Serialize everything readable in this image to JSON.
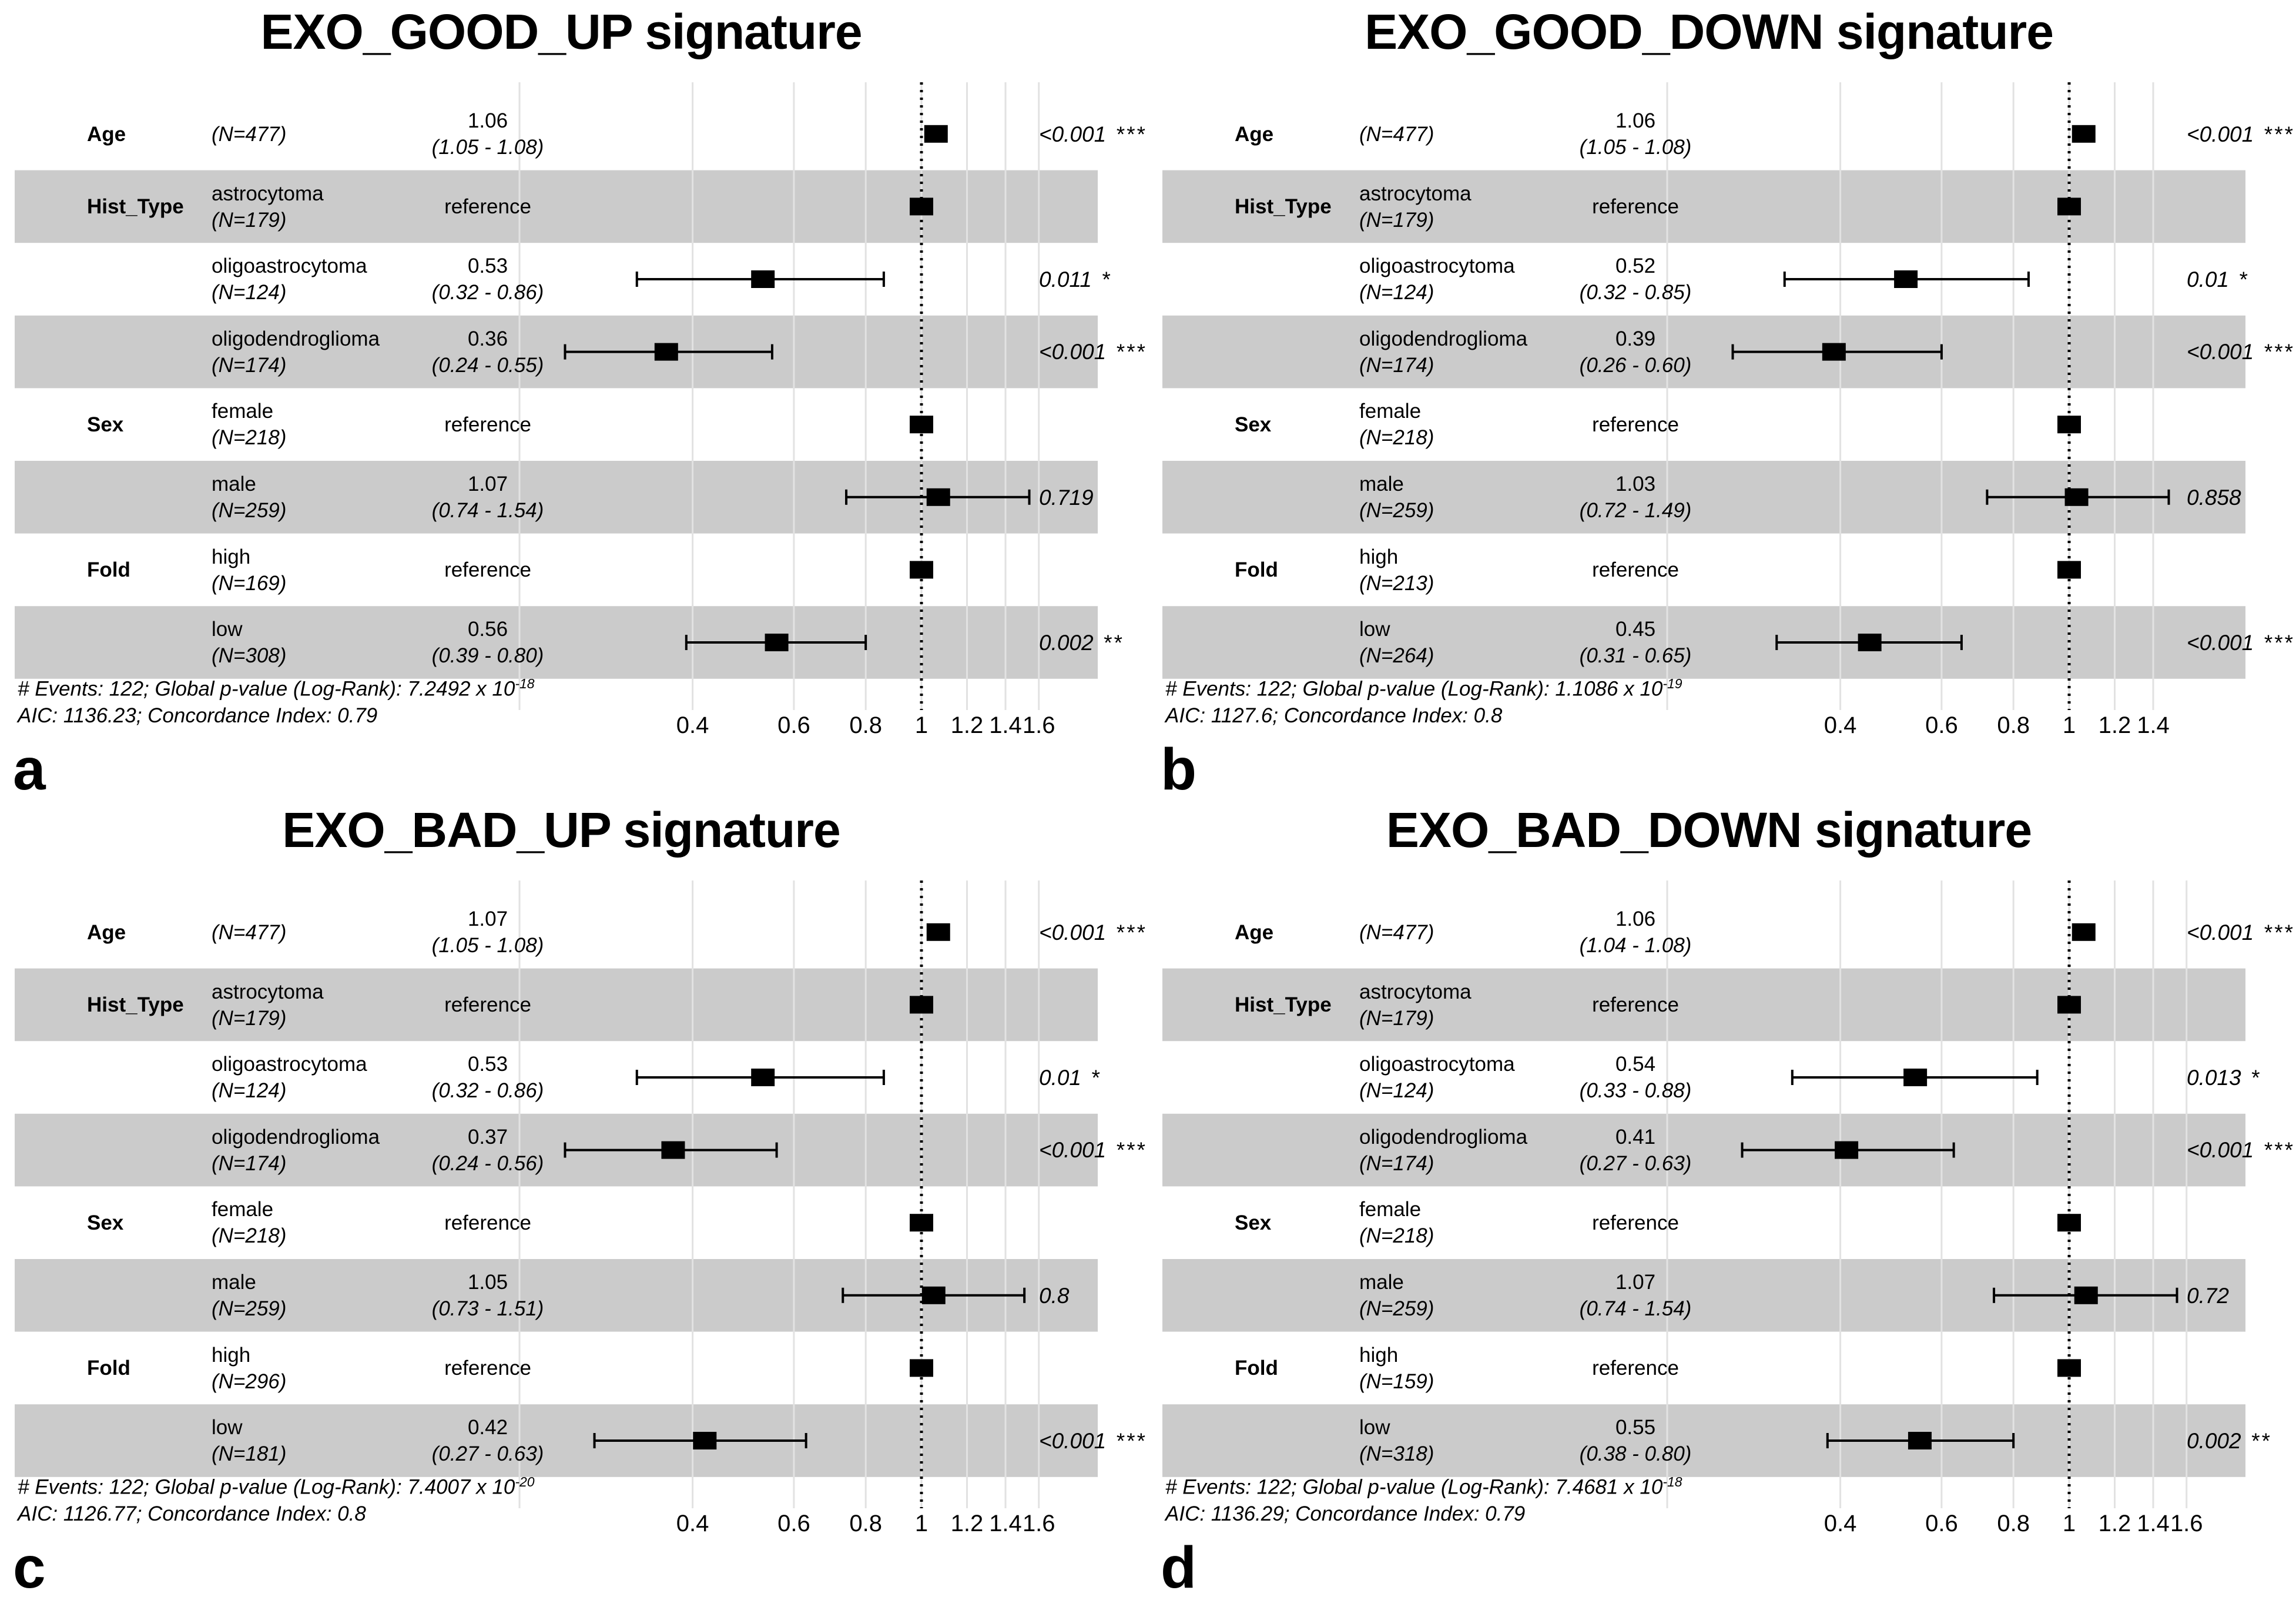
{
  "figure": {
    "background": "#ffffff",
    "band_color": "#cbcbcb",
    "grid_color": "#e2e2e2",
    "marker_color": "#000000"
  },
  "chart_data": [
    {
      "panel_letter": "a",
      "type": "forest",
      "title": "EXO_GOOD_UP signature",
      "xscale": "log",
      "ref_line": 1,
      "x_ticks": [
        "0.4",
        "0.6",
        "0.8",
        "1",
        "1.2",
        "1.4",
        "1.6"
      ],
      "x_grid": [
        0.2,
        0.4,
        0.6,
        0.8,
        1,
        1.2,
        1.4,
        1.6
      ],
      "rows": [
        {
          "variable": "Age",
          "level": "",
          "n": "(N=477)",
          "estimate": "1.06",
          "ci_text": "(1.05 - 1.08)",
          "hr": 1.06,
          "ci_low": 1.05,
          "ci_high": 1.08,
          "p": "<0.001",
          "stars": "***",
          "shaded": false,
          "reference": false
        },
        {
          "variable": "Hist_Type",
          "level": "astrocytoma",
          "n": "(N=179)",
          "estimate": "reference",
          "hr": 1,
          "shaded": true,
          "reference": true
        },
        {
          "variable": "",
          "level": "oligoastrocytoma",
          "n": "(N=124)",
          "estimate": "0.53",
          "ci_text": "(0.32 - 0.86)",
          "hr": 0.53,
          "ci_low": 0.32,
          "ci_high": 0.86,
          "p": "0.011",
          "stars": "*",
          "shaded": false,
          "reference": false
        },
        {
          "variable": "",
          "level": "oligodendroglioma",
          "n": "(N=174)",
          "estimate": "0.36",
          "ci_text": "(0.24 - 0.55)",
          "hr": 0.36,
          "ci_low": 0.24,
          "ci_high": 0.55,
          "p": "<0.001",
          "stars": "***",
          "shaded": true,
          "reference": false
        },
        {
          "variable": "Sex",
          "level": "female",
          "n": "(N=218)",
          "estimate": "reference",
          "hr": 1,
          "shaded": false,
          "reference": true
        },
        {
          "variable": "",
          "level": "male",
          "n": "(N=259)",
          "estimate": "1.07",
          "ci_text": "(0.74 - 1.54)",
          "hr": 1.07,
          "ci_low": 0.74,
          "ci_high": 1.54,
          "p": "0.719",
          "stars": "",
          "shaded": true,
          "reference": false
        },
        {
          "variable": "Fold",
          "level": "high",
          "n": "(N=169)",
          "estimate": "reference",
          "hr": 1,
          "shaded": false,
          "reference": true
        },
        {
          "variable": "",
          "level": "low",
          "n": "(N=308)",
          "estimate": "0.56",
          "ci_text": "(0.39 - 0.80)",
          "hr": 0.56,
          "ci_low": 0.39,
          "ci_high": 0.8,
          "p": "0.002",
          "stars": "**",
          "shaded": true,
          "reference": false
        }
      ],
      "footnote_events": "# Events: 122; Global p-value (Log-Rank): 7.2492 x 10",
      "footnote_exp": "-18",
      "footnote_aic": "AIC: 1136.23; Concordance Index: 0.79"
    },
    {
      "panel_letter": "b",
      "type": "forest",
      "title": "EXO_GOOD_DOWN signature",
      "xscale": "log",
      "ref_line": 1,
      "x_ticks": [
        "0.4",
        "0.6",
        "0.8",
        "1",
        "1.2",
        "1.4"
      ],
      "x_grid": [
        0.2,
        0.4,
        0.6,
        0.8,
        1,
        1.2,
        1.4
      ],
      "rows": [
        {
          "variable": "Age",
          "level": "",
          "n": "(N=477)",
          "estimate": "1.06",
          "ci_text": "(1.05 - 1.08)",
          "hr": 1.06,
          "ci_low": 1.05,
          "ci_high": 1.08,
          "p": "<0.001",
          "stars": "***",
          "shaded": false,
          "reference": false
        },
        {
          "variable": "Hist_Type",
          "level": "astrocytoma",
          "n": "(N=179)",
          "estimate": "reference",
          "hr": 1,
          "shaded": true,
          "reference": true
        },
        {
          "variable": "",
          "level": "oligoastrocytoma",
          "n": "(N=124)",
          "estimate": "0.52",
          "ci_text": "(0.32 - 0.85)",
          "hr": 0.52,
          "ci_low": 0.32,
          "ci_high": 0.85,
          "p": "0.01",
          "stars": "*",
          "shaded": false,
          "reference": false
        },
        {
          "variable": "",
          "level": "oligodendroglioma",
          "n": "(N=174)",
          "estimate": "0.39",
          "ci_text": "(0.26 - 0.60)",
          "hr": 0.39,
          "ci_low": 0.26,
          "ci_high": 0.6,
          "p": "<0.001",
          "stars": "***",
          "shaded": true,
          "reference": false
        },
        {
          "variable": "Sex",
          "level": "female",
          "n": "(N=218)",
          "estimate": "reference",
          "hr": 1,
          "shaded": false,
          "reference": true
        },
        {
          "variable": "",
          "level": "male",
          "n": "(N=259)",
          "estimate": "1.03",
          "ci_text": "(0.72 - 1.49)",
          "hr": 1.03,
          "ci_low": 0.72,
          "ci_high": 1.49,
          "p": "0.858",
          "stars": "",
          "shaded": true,
          "reference": false
        },
        {
          "variable": "Fold",
          "level": "high",
          "n": "(N=213)",
          "estimate": "reference",
          "hr": 1,
          "shaded": false,
          "reference": true
        },
        {
          "variable": "",
          "level": "low",
          "n": "(N=264)",
          "estimate": "0.45",
          "ci_text": "(0.31 - 0.65)",
          "hr": 0.45,
          "ci_low": 0.31,
          "ci_high": 0.65,
          "p": "<0.001",
          "stars": "***",
          "shaded": true,
          "reference": false
        }
      ],
      "footnote_events": "# Events: 122; Global p-value (Log-Rank): 1.1086 x 10",
      "footnote_exp": "-19",
      "footnote_aic": "AIC: 1127.6; Concordance Index: 0.8"
    },
    {
      "panel_letter": "c",
      "type": "forest",
      "title": "EXO_BAD_UP signature",
      "xscale": "log",
      "ref_line": 1,
      "x_ticks": [
        "0.4",
        "0.6",
        "0.8",
        "1",
        "1.2",
        "1.4",
        "1.6"
      ],
      "x_grid": [
        0.2,
        0.4,
        0.6,
        0.8,
        1,
        1.2,
        1.4,
        1.6
      ],
      "rows": [
        {
          "variable": "Age",
          "level": "",
          "n": "(N=477)",
          "estimate": "1.07",
          "ci_text": "(1.05 - 1.08)",
          "hr": 1.07,
          "ci_low": 1.05,
          "ci_high": 1.08,
          "p": "<0.001",
          "stars": "***",
          "shaded": false,
          "reference": false
        },
        {
          "variable": "Hist_Type",
          "level": "astrocytoma",
          "n": "(N=179)",
          "estimate": "reference",
          "hr": 1,
          "shaded": true,
          "reference": true
        },
        {
          "variable": "",
          "level": "oligoastrocytoma",
          "n": "(N=124)",
          "estimate": "0.53",
          "ci_text": "(0.32 - 0.86)",
          "hr": 0.53,
          "ci_low": 0.32,
          "ci_high": 0.86,
          "p": "0.01",
          "stars": "*",
          "shaded": false,
          "reference": false
        },
        {
          "variable": "",
          "level": "oligodendroglioma",
          "n": "(N=174)",
          "estimate": "0.37",
          "ci_text": "(0.24 - 0.56)",
          "hr": 0.37,
          "ci_low": 0.24,
          "ci_high": 0.56,
          "p": "<0.001",
          "stars": "***",
          "shaded": true,
          "reference": false
        },
        {
          "variable": "Sex",
          "level": "female",
          "n": "(N=218)",
          "estimate": "reference",
          "hr": 1,
          "shaded": false,
          "reference": true
        },
        {
          "variable": "",
          "level": "male",
          "n": "(N=259)",
          "estimate": "1.05",
          "ci_text": "(0.73 - 1.51)",
          "hr": 1.05,
          "ci_low": 0.73,
          "ci_high": 1.51,
          "p": "0.8",
          "stars": "",
          "shaded": true,
          "reference": false
        },
        {
          "variable": "Fold",
          "level": "high",
          "n": "(N=296)",
          "estimate": "reference",
          "hr": 1,
          "shaded": false,
          "reference": true
        },
        {
          "variable": "",
          "level": "low",
          "n": "(N=181)",
          "estimate": "0.42",
          "ci_text": "(0.27 - 0.63)",
          "hr": 0.42,
          "ci_low": 0.27,
          "ci_high": 0.63,
          "p": "<0.001",
          "stars": "***",
          "shaded": true,
          "reference": false
        }
      ],
      "footnote_events": "# Events: 122; Global p-value (Log-Rank): 7.4007 x 10",
      "footnote_exp": "-20",
      "footnote_aic": "AIC: 1126.77; Concordance Index: 0.8"
    },
    {
      "panel_letter": "d",
      "type": "forest",
      "title": "EXO_BAD_DOWN signature",
      "xscale": "log",
      "ref_line": 1,
      "x_ticks": [
        "0.4",
        "0.6",
        "0.8",
        "1",
        "1.2",
        "1.4",
        "1.6"
      ],
      "x_grid": [
        0.2,
        0.4,
        0.6,
        0.8,
        1,
        1.2,
        1.4,
        1.6
      ],
      "rows": [
        {
          "variable": "Age",
          "level": "",
          "n": "(N=477)",
          "estimate": "1.06",
          "ci_text": "(1.04 - 1.08)",
          "hr": 1.06,
          "ci_low": 1.04,
          "ci_high": 1.08,
          "p": "<0.001",
          "stars": "***",
          "shaded": false,
          "reference": false
        },
        {
          "variable": "Hist_Type",
          "level": "astrocytoma",
          "n": "(N=179)",
          "estimate": "reference",
          "hr": 1,
          "shaded": true,
          "reference": true
        },
        {
          "variable": "",
          "level": "oligoastrocytoma",
          "n": "(N=124)",
          "estimate": "0.54",
          "ci_text": "(0.33 - 0.88)",
          "hr": 0.54,
          "ci_low": 0.33,
          "ci_high": 0.88,
          "p": "0.013",
          "stars": "*",
          "shaded": false,
          "reference": false
        },
        {
          "variable": "",
          "level": "oligodendroglioma",
          "n": "(N=174)",
          "estimate": "0.41",
          "ci_text": "(0.27 - 0.63)",
          "hr": 0.41,
          "ci_low": 0.27,
          "ci_high": 0.63,
          "p": "<0.001",
          "stars": "***",
          "shaded": true,
          "reference": false
        },
        {
          "variable": "Sex",
          "level": "female",
          "n": "(N=218)",
          "estimate": "reference",
          "hr": 1,
          "shaded": false,
          "reference": true
        },
        {
          "variable": "",
          "level": "male",
          "n": "(N=259)",
          "estimate": "1.07",
          "ci_text": "(0.74 - 1.54)",
          "hr": 1.07,
          "ci_low": 0.74,
          "ci_high": 1.54,
          "p": "0.72",
          "stars": "",
          "shaded": true,
          "reference": false
        },
        {
          "variable": "Fold",
          "level": "high",
          "n": "(N=159)",
          "estimate": "reference",
          "hr": 1,
          "shaded": false,
          "reference": true
        },
        {
          "variable": "",
          "level": "low",
          "n": "(N=318)",
          "estimate": "0.55",
          "ci_text": "(0.38 - 0.80)",
          "hr": 0.55,
          "ci_low": 0.38,
          "ci_high": 0.8,
          "p": "0.002",
          "stars": "**",
          "shaded": true,
          "reference": false
        }
      ],
      "footnote_events": "# Events: 122; Global p-value (Log-Rank): 7.4681 x 10",
      "footnote_exp": "-18",
      "footnote_aic": "AIC: 1136.29; Concordance Index: 0.79"
    }
  ]
}
